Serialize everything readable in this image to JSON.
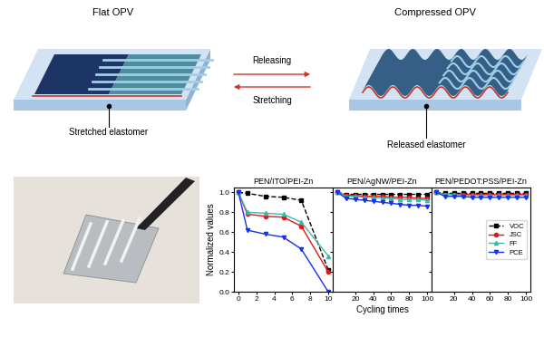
{
  "diagram": {
    "left": {
      "title": "Flat OPV",
      "label": "Stretched elastomer"
    },
    "right": {
      "title": "Compressed OPV",
      "label": "Released elastomer"
    },
    "arrows": {
      "forward": "Releasing",
      "backward": "Stretching"
    }
  },
  "chart_data": [
    {
      "type": "line",
      "title": "PEN/ITO/PEI-Zn",
      "y_label": "Normalized values",
      "x": [
        0,
        1,
        3,
        5,
        7,
        10
      ],
      "xlim": [
        -0.5,
        10.5
      ],
      "xticks": [
        0,
        2,
        4,
        6,
        8,
        10
      ],
      "ylim": [
        0,
        1.05
      ],
      "yticks": [
        {
          "value": 0,
          "label": "0.0"
        },
        {
          "value": 0.2,
          "label": "0.2"
        },
        {
          "value": 0.4,
          "label": "0.4"
        },
        {
          "value": 0.6,
          "label": "0.6"
        },
        {
          "value": 0.8,
          "label": "0.8"
        },
        {
          "value": 1,
          "label": "1.0"
        }
      ],
      "series": [
        {
          "name": "VOC",
          "color": "#000000",
          "marker": "square",
          "line_style": "dashed",
          "values": [
            1.0,
            0.99,
            0.96,
            0.95,
            0.92,
            0.22
          ]
        },
        {
          "name": "JSC",
          "color": "#e8141b",
          "marker": "circle",
          "line_style": "solid",
          "values": [
            1.0,
            0.78,
            0.76,
            0.75,
            0.66,
            0.2
          ]
        },
        {
          "name": "FF",
          "color": "#3cbaa8",
          "marker": "triangle-up",
          "line_style": "solid",
          "values": [
            1.0,
            0.8,
            0.79,
            0.78,
            0.7,
            0.36
          ]
        },
        {
          "name": "PCE",
          "color": "#1430f0",
          "marker": "triangle-down",
          "line_style": "solid",
          "values": [
            1.0,
            0.62,
            0.58,
            0.55,
            0.43,
            0.0
          ]
        }
      ]
    },
    {
      "type": "line",
      "title": "PEN/AgNW/PEI-Zn",
      "x_label": "Cycling times",
      "tick_labels": "x",
      "x": [
        0,
        10,
        20,
        30,
        40,
        50,
        60,
        70,
        80,
        90,
        100
      ],
      "xlim": [
        -5,
        105
      ],
      "xticks": [
        20,
        40,
        60,
        80,
        100
      ],
      "ylim": [
        0,
        1.05
      ],
      "yticks": [
        0,
        0.2,
        0.4,
        0.6,
        0.8,
        1
      ],
      "series": [
        {
          "name": "VOC",
          "color": "#000000",
          "marker": "square",
          "line_style": "dashed",
          "values": [
            1.0,
            0.98,
            0.98,
            0.98,
            0.98,
            0.98,
            0.98,
            0.98,
            0.98,
            0.98,
            0.98
          ]
        },
        {
          "name": "JSC",
          "color": "#e8141b",
          "marker": "circle",
          "line_style": "solid",
          "values": [
            1.0,
            0.97,
            0.97,
            0.96,
            0.96,
            0.96,
            0.95,
            0.95,
            0.95,
            0.94,
            0.94
          ]
        },
        {
          "name": "FF",
          "color": "#3cbaa8",
          "marker": "triangle-up",
          "line_style": "solid",
          "values": [
            1.0,
            0.96,
            0.96,
            0.95,
            0.95,
            0.94,
            0.94,
            0.93,
            0.93,
            0.93,
            0.92
          ]
        },
        {
          "name": "PCE",
          "color": "#1430f0",
          "marker": "triangle-down",
          "line_style": "solid",
          "values": [
            1.0,
            0.94,
            0.93,
            0.92,
            0.91,
            0.9,
            0.89,
            0.88,
            0.87,
            0.87,
            0.86
          ]
        }
      ]
    },
    {
      "type": "line",
      "title": "PEN/PEDOT:PSS/PEI-Zn",
      "tick_labels": "x",
      "legend": "center right",
      "x": [
        0,
        10,
        20,
        30,
        40,
        50,
        60,
        70,
        80,
        90,
        100
      ],
      "xlim": [
        -5,
        105
      ],
      "xticks": [
        20,
        40,
        60,
        80,
        100
      ],
      "ylim": [
        0,
        1.05
      ],
      "yticks": [
        0,
        0.2,
        0.4,
        0.6,
        0.8,
        1
      ],
      "series": [
        {
          "name": "VOC",
          "color": "#000000",
          "marker": "square",
          "line_style": "dashed",
          "values": [
            1.0,
            0.99,
            0.99,
            0.99,
            0.99,
            0.99,
            0.99,
            0.99,
            0.99,
            0.99,
            0.99
          ]
        },
        {
          "name": "JSC",
          "color": "#e8141b",
          "marker": "circle",
          "line_style": "solid",
          "values": [
            1.0,
            0.98,
            0.98,
            0.98,
            0.98,
            0.98,
            0.98,
            0.98,
            0.98,
            0.98,
            0.98
          ]
        },
        {
          "name": "FF",
          "color": "#3cbaa8",
          "marker": "triangle-up",
          "line_style": "solid",
          "values": [
            1.0,
            0.98,
            0.98,
            0.97,
            0.97,
            0.97,
            0.97,
            0.97,
            0.97,
            0.97,
            0.97
          ]
        },
        {
          "name": "PCE",
          "color": "#1430f0",
          "marker": "triangle-down",
          "line_style": "solid",
          "values": [
            1.0,
            0.96,
            0.96,
            0.96,
            0.95,
            0.95,
            0.95,
            0.95,
            0.95,
            0.95,
            0.95
          ]
        }
      ]
    }
  ]
}
